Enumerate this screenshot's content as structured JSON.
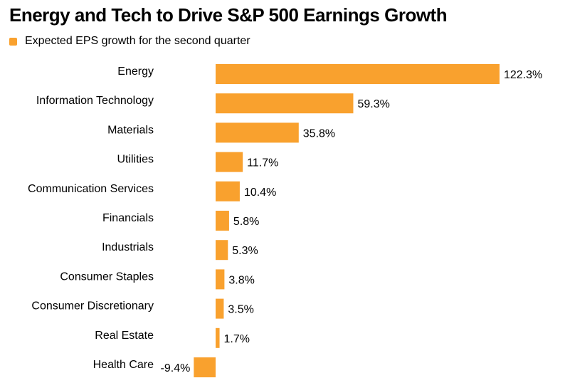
{
  "title": "Energy and Tech to Drive S&P 500 Earnings Growth",
  "colors": {
    "bar": "#f9a12e"
  },
  "chart_data": {
    "type": "bar",
    "orientation": "horizontal",
    "title": "Energy and Tech to Drive S&P 500 Earnings Growth",
    "legend": [
      "Expected EPS growth for the second quarter"
    ],
    "legend_position": "top-left",
    "grid": false,
    "categories": [
      "Energy",
      "Information Technology",
      "Materials",
      "Utilities",
      "Communication Services",
      "Financials",
      "Industrials",
      "Consumer Staples",
      "Consumer Discretionary",
      "Real Estate",
      "Health Care"
    ],
    "series": [
      {
        "name": "Expected EPS growth for the second quarter",
        "values": [
          122.3,
          59.3,
          35.8,
          11.7,
          10.4,
          5.8,
          5.3,
          3.8,
          3.5,
          1.7,
          -9.4
        ]
      }
    ],
    "data_labels": [
      "122.3%",
      "59.3%",
      "35.8%",
      "11.7%",
      "10.4%",
      "5.8%",
      "5.3%",
      "3.8%",
      "3.5%",
      "1.7%",
      "-9.4%"
    ],
    "unit": "%"
  }
}
